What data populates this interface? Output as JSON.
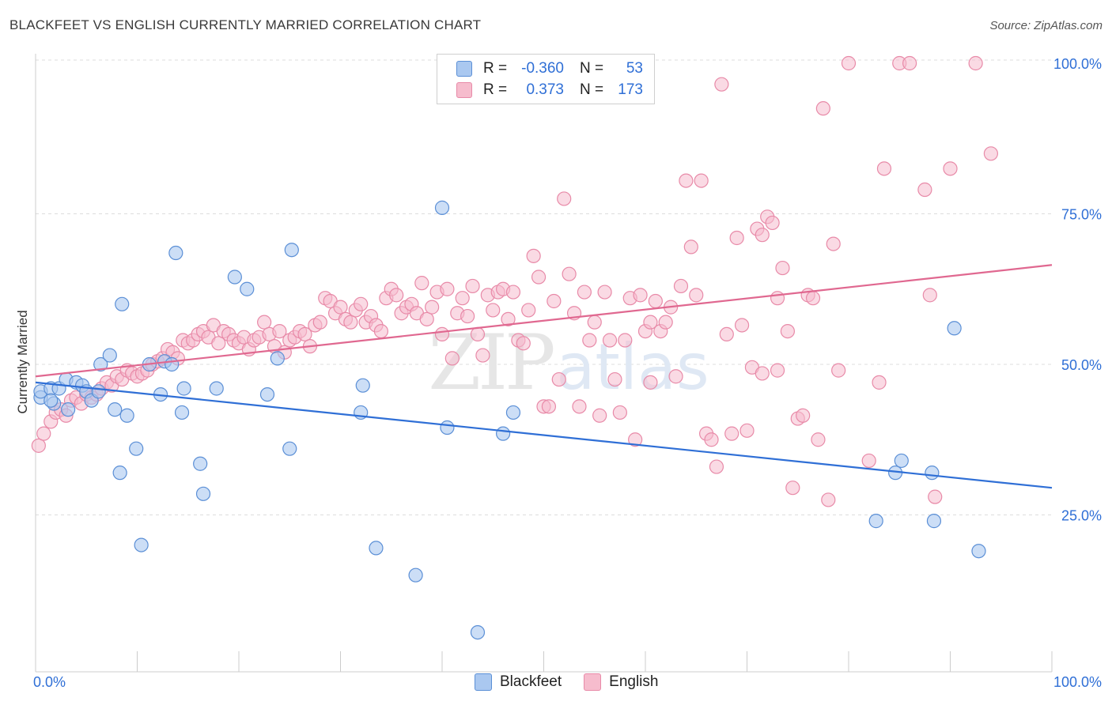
{
  "title": "BLACKFEET VS ENGLISH CURRENTLY MARRIED CORRELATION CHART",
  "source": "Source: ZipAtlas.com",
  "watermark": {
    "zip": "ZIP",
    "atlas": "atlas"
  },
  "legend": {
    "rows": [
      {
        "r_label": "R =",
        "r_value": "-0.360",
        "n_label": "N =",
        "n_value": "53"
      },
      {
        "r_label": "R =",
        "r_value": "0.373",
        "n_label": "N =",
        "n_value": "173"
      }
    ]
  },
  "bottom_legend": {
    "blackfeet": "Blackfeet",
    "english": "English"
  },
  "colors": {
    "blackfeet_fill": "#aac8f0",
    "blackfeet_stroke": "#5b8fd6",
    "blackfeet_line": "#2f6fd6",
    "english_fill": "#f6bccd",
    "english_stroke": "#e88aa8",
    "english_line": "#e06890",
    "tick_label": "#2f6fd6",
    "grid": "#dddddd"
  },
  "chart_data": {
    "type": "scatter",
    "title": "BLACKFEET VS ENGLISH CURRENTLY MARRIED CORRELATION CHART",
    "xlabel": "",
    "ylabel": "Currently Married",
    "xlim": [
      0,
      100
    ],
    "ylim": [
      0,
      103
    ],
    "x_tick_labels": [
      "0.0%",
      "100.0%"
    ],
    "y_ticks": [
      {
        "value": 100,
        "label": "100.0%"
      },
      {
        "value": 75,
        "label": "75.0%"
      },
      {
        "value": 50,
        "label": "50.0%"
      },
      {
        "value": 25,
        "label": "25.0%"
      }
    ],
    "series": [
      {
        "name": "Blackfeet",
        "r": -0.36,
        "n": 53,
        "trend": {
          "x0": 0,
          "y0": 47.0,
          "x1": 100,
          "y1": 29.5
        },
        "points": [
          [
            0.5,
            44.5
          ],
          [
            0.5,
            45.5
          ],
          [
            1.5,
            46.0
          ],
          [
            1.8,
            43.5
          ],
          [
            2.3,
            46.0
          ],
          [
            3.0,
            47.5
          ],
          [
            3.2,
            42.5
          ],
          [
            4.0,
            47.0
          ],
          [
            4.6,
            46.5
          ],
          [
            5.0,
            45.5
          ],
          [
            5.5,
            44.0
          ],
          [
            6.2,
            45.5
          ],
          [
            6.4,
            50.0
          ],
          [
            7.3,
            51.5
          ],
          [
            7.8,
            42.5
          ],
          [
            8.3,
            32.0
          ],
          [
            8.5,
            60.0
          ],
          [
            9.0,
            41.5
          ],
          [
            9.9,
            36.0
          ],
          [
            10.4,
            20.0
          ],
          [
            11.2,
            50.0
          ],
          [
            12.3,
            45.0
          ],
          [
            12.7,
            50.5
          ],
          [
            13.4,
            50.0
          ],
          [
            13.8,
            68.5
          ],
          [
            14.4,
            42.0
          ],
          [
            14.6,
            46.0
          ],
          [
            16.2,
            33.5
          ],
          [
            16.5,
            28.5
          ],
          [
            17.8,
            46.0
          ],
          [
            19.6,
            64.5
          ],
          [
            20.8,
            62.5
          ],
          [
            22.8,
            45.0
          ],
          [
            23.8,
            51.0
          ],
          [
            25.0,
            36.0
          ],
          [
            25.2,
            69.0
          ],
          [
            32.0,
            42.0
          ],
          [
            32.2,
            46.5
          ],
          [
            33.5,
            19.5
          ],
          [
            37.4,
            15.0
          ],
          [
            40.0,
            76.0
          ],
          [
            40.5,
            39.5
          ],
          [
            43.5,
            5.5
          ],
          [
            46.0,
            38.5
          ],
          [
            47.0,
            42.0
          ],
          [
            82.7,
            24.0
          ],
          [
            84.6,
            32.0
          ],
          [
            85.2,
            34.0
          ],
          [
            88.2,
            32.0
          ],
          [
            88.4,
            24.0
          ],
          [
            90.4,
            56.0
          ],
          [
            92.8,
            19.0
          ],
          [
            1.5,
            44.0
          ]
        ]
      },
      {
        "name": "English",
        "r": 0.373,
        "n": 173,
        "trend": {
          "x0": 0,
          "y0": 48.0,
          "x1": 100,
          "y1": 66.5
        },
        "points": [
          [
            0.3,
            36.5
          ],
          [
            0.8,
            38.5
          ],
          [
            1.5,
            40.5
          ],
          [
            2.0,
            42.0
          ],
          [
            2.5,
            42.5
          ],
          [
            3.0,
            41.5
          ],
          [
            3.5,
            44.0
          ],
          [
            4.0,
            44.5
          ],
          [
            4.5,
            43.5
          ],
          [
            5.0,
            45.0
          ],
          [
            5.5,
            44.5
          ],
          [
            6.0,
            45.0
          ],
          [
            6.5,
            46.0
          ],
          [
            7.0,
            47.0
          ],
          [
            7.5,
            46.5
          ],
          [
            8.0,
            48.0
          ],
          [
            8.5,
            47.5
          ],
          [
            9.0,
            49.0
          ],
          [
            9.5,
            48.5
          ],
          [
            10.0,
            48.0
          ],
          [
            10.5,
            48.5
          ],
          [
            11.0,
            49.0
          ],
          [
            11.5,
            50.0
          ],
          [
            12.0,
            50.5
          ],
          [
            12.5,
            51.0
          ],
          [
            13.0,
            52.5
          ],
          [
            13.5,
            52.0
          ],
          [
            14.0,
            51.0
          ],
          [
            14.5,
            54.0
          ],
          [
            15.0,
            53.5
          ],
          [
            15.5,
            54.0
          ],
          [
            16.0,
            55.0
          ],
          [
            16.5,
            55.5
          ],
          [
            17.0,
            54.5
          ],
          [
            17.5,
            56.5
          ],
          [
            18.0,
            53.5
          ],
          [
            18.5,
            55.5
          ],
          [
            19.0,
            55.0
          ],
          [
            19.5,
            54.0
          ],
          [
            20.0,
            53.5
          ],
          [
            20.5,
            54.5
          ],
          [
            21.0,
            52.5
          ],
          [
            21.5,
            54.0
          ],
          [
            22.0,
            54.5
          ],
          [
            22.5,
            57.0
          ],
          [
            23.0,
            55.0
          ],
          [
            23.5,
            53.0
          ],
          [
            24.0,
            55.5
          ],
          [
            24.5,
            52.0
          ],
          [
            25.0,
            54.0
          ],
          [
            25.5,
            54.5
          ],
          [
            26.0,
            55.5
          ],
          [
            26.5,
            55.0
          ],
          [
            27.0,
            53.0
          ],
          [
            27.5,
            56.5
          ],
          [
            28.0,
            57.0
          ],
          [
            28.5,
            61.0
          ],
          [
            29.0,
            60.5
          ],
          [
            29.5,
            58.5
          ],
          [
            30.0,
            59.5
          ],
          [
            30.5,
            57.5
          ],
          [
            31.0,
            57.0
          ],
          [
            31.5,
            59.0
          ],
          [
            32.0,
            60.0
          ],
          [
            32.5,
            57.0
          ],
          [
            33.0,
            58.0
          ],
          [
            33.5,
            56.5
          ],
          [
            34.0,
            55.5
          ],
          [
            34.5,
            61.0
          ],
          [
            35.0,
            62.5
          ],
          [
            35.5,
            61.5
          ],
          [
            36.0,
            58.5
          ],
          [
            36.5,
            59.5
          ],
          [
            37.0,
            60.0
          ],
          [
            37.5,
            58.5
          ],
          [
            38.0,
            63.5
          ],
          [
            38.5,
            57.5
          ],
          [
            39.0,
            59.5
          ],
          [
            39.5,
            62.0
          ],
          [
            40.0,
            55.0
          ],
          [
            40.5,
            62.5
          ],
          [
            41.0,
            51.0
          ],
          [
            41.5,
            58.5
          ],
          [
            42.0,
            61.0
          ],
          [
            42.5,
            58.0
          ],
          [
            43.0,
            63.0
          ],
          [
            43.5,
            55.0
          ],
          [
            44.0,
            51.5
          ],
          [
            44.5,
            61.5
          ],
          [
            45.0,
            59.0
          ],
          [
            45.5,
            62.0
          ],
          [
            46.0,
            62.5
          ],
          [
            46.5,
            57.5
          ],
          [
            47.0,
            62.0
          ],
          [
            47.5,
            54.0
          ],
          [
            48.0,
            53.5
          ],
          [
            48.5,
            59.0
          ],
          [
            49.0,
            68.0
          ],
          [
            49.5,
            64.5
          ],
          [
            50.0,
            43.0
          ],
          [
            50.5,
            43.0
          ],
          [
            51.0,
            60.5
          ],
          [
            51.5,
            47.5
          ],
          [
            52.0,
            77.5
          ],
          [
            52.5,
            65.0
          ],
          [
            53.0,
            58.5
          ],
          [
            53.5,
            43.0
          ],
          [
            54.0,
            62.0
          ],
          [
            54.5,
            54.0
          ],
          [
            55.0,
            57.0
          ],
          [
            55.5,
            41.5
          ],
          [
            56.0,
            62.0
          ],
          [
            56.5,
            54.0
          ],
          [
            57.0,
            47.5
          ],
          [
            57.5,
            42.0
          ],
          [
            58.0,
            54.0
          ],
          [
            58.5,
            61.0
          ],
          [
            59.0,
            37.5
          ],
          [
            59.5,
            61.5
          ],
          [
            60.0,
            55.5
          ],
          [
            60.5,
            47.0
          ],
          [
            61.0,
            60.5
          ],
          [
            61.5,
            55.5
          ],
          [
            62.0,
            57.0
          ],
          [
            62.5,
            59.5
          ],
          [
            63.0,
            48.0
          ],
          [
            63.5,
            63.0
          ],
          [
            64.0,
            80.5
          ],
          [
            64.5,
            69.5
          ],
          [
            65.0,
            61.5
          ],
          [
            65.5,
            80.5
          ],
          [
            66.0,
            38.5
          ],
          [
            66.5,
            37.5
          ],
          [
            67.0,
            33.0
          ],
          [
            67.5,
            96.5
          ],
          [
            68.0,
            55.0
          ],
          [
            68.5,
            38.5
          ],
          [
            69.0,
            71.0
          ],
          [
            69.5,
            56.5
          ],
          [
            70.0,
            39.0
          ],
          [
            70.5,
            49.5
          ],
          [
            71.0,
            72.5
          ],
          [
            71.5,
            71.5
          ],
          [
            72.0,
            74.5
          ],
          [
            72.5,
            73.5
          ],
          [
            73.0,
            61.0
          ],
          [
            73.5,
            66.0
          ],
          [
            74.0,
            55.5
          ],
          [
            74.5,
            29.5
          ],
          [
            75.0,
            41.0
          ],
          [
            75.5,
            41.5
          ],
          [
            76.0,
            61.5
          ],
          [
            76.5,
            61.0
          ],
          [
            77.0,
            37.5
          ],
          [
            77.5,
            92.5
          ],
          [
            78.0,
            27.5
          ],
          [
            78.5,
            70.0
          ],
          [
            79.0,
            49.0
          ],
          [
            80.0,
            100.0
          ],
          [
            82.0,
            34.0
          ],
          [
            83.0,
            47.0
          ],
          [
            83.5,
            82.5
          ],
          [
            85.0,
            100.0
          ],
          [
            86.0,
            100.0
          ],
          [
            87.5,
            79.0
          ],
          [
            88.0,
            61.5
          ],
          [
            88.5,
            28.0
          ],
          [
            90.0,
            82.5
          ],
          [
            92.5,
            100.0
          ],
          [
            94.0,
            85.0
          ],
          [
            73.0,
            49.0
          ],
          [
            71.5,
            48.5
          ],
          [
            60.5,
            57.0
          ]
        ]
      }
    ]
  }
}
